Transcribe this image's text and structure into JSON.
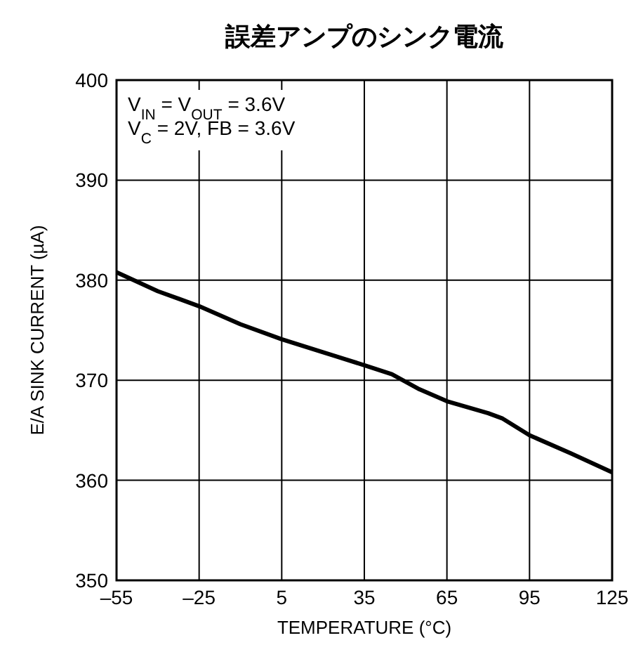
{
  "chart_data": {
    "type": "line",
    "title": "誤差アンプのシンク電流",
    "xlabel": "TEMPERATURE (°C)",
    "ylabel": "E/A SINK CURRENT (µA)",
    "annotations": [
      "V$_{IN}$ = V$_{OUT}$ = 3.6V",
      "V$_{C}$ = 2V, FB = 3.6V"
    ],
    "x": [
      -55,
      -40,
      -25,
      -10,
      5,
      20,
      35,
      45,
      55,
      65,
      80,
      85,
      95,
      110,
      125
    ],
    "series": [
      {
        "color": "#000000",
        "values": [
          380.8,
          378.9,
          377.4,
          375.6,
          374.1,
          372.8,
          371.5,
          370.6,
          369.1,
          367.9,
          366.7,
          366.2,
          364.5,
          362.7,
          360.8
        ]
      }
    ],
    "xlim": [
      -55,
      125
    ],
    "xticks": [
      {
        "value": -55,
        "label": "–55"
      },
      {
        "value": -25,
        "label": "–25"
      },
      5,
      35,
      65,
      95,
      125
    ],
    "ylim": [
      350,
      400
    ],
    "yticks": [
      350,
      360,
      370,
      380,
      390,
      400
    ],
    "grid": true,
    "marker": "none",
    "line_style": "solid"
  }
}
